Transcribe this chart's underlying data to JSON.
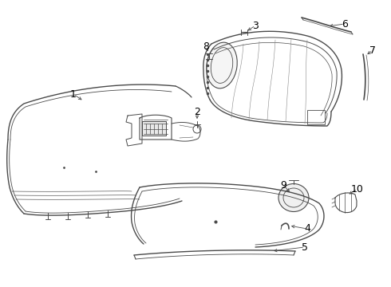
{
  "background_color": "#ffffff",
  "line_color": "#4a4a4a",
  "label_color": "#000000",
  "label_fontsize": 9,
  "figsize": [
    4.9,
    3.6
  ],
  "dpi": 100
}
